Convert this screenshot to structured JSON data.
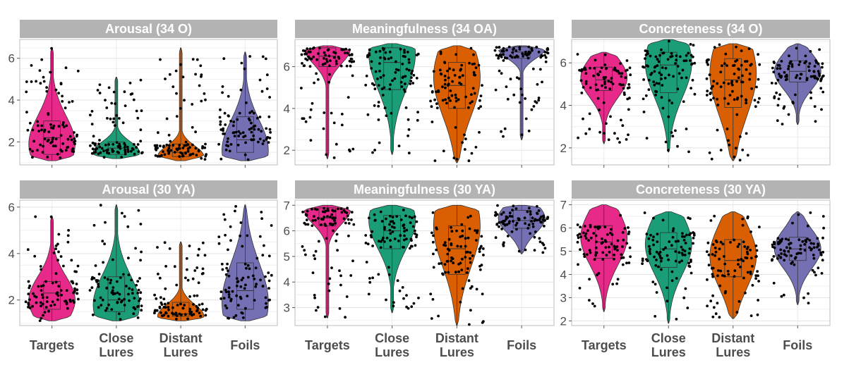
{
  "chart_data": [
    {
      "type": "violin",
      "title": "Arousal (34 O)",
      "ylim": [
        0.9,
        6.9
      ],
      "yticks": [
        2,
        4,
        6
      ],
      "categories": [
        "Targets",
        "Close Lures",
        "Distant Lures",
        "Foils"
      ],
      "colors": [
        "#e7298a",
        "#1b9e77",
        "#d95f02",
        "#7570b3"
      ],
      "series": [
        {
          "min": 1.1,
          "q1": 1.4,
          "median": 2.2,
          "q3": 3.0,
          "max": 6.5,
          "peak": 1.9
        },
        {
          "min": 1.2,
          "q1": 1.4,
          "median": 1.7,
          "q3": 2.0,
          "max": 5.1,
          "peak": 1.5
        },
        {
          "min": 1.1,
          "q1": 1.3,
          "median": 1.5,
          "q3": 1.9,
          "max": 6.5,
          "peak": 1.3
        },
        {
          "min": 1.1,
          "q1": 1.5,
          "median": 2.1,
          "q3": 3.2,
          "max": 6.3,
          "peak": 1.6
        }
      ]
    },
    {
      "type": "violin",
      "title": "Meaningfulness (34 OA)",
      "ylim": [
        1.3,
        7.3
      ],
      "yticks": [
        2,
        4,
        6
      ],
      "categories": [
        "Targets",
        "Close Lures",
        "Distant Lures",
        "Foils"
      ],
      "colors": [
        "#e7298a",
        "#1b9e77",
        "#d95f02",
        "#7570b3"
      ],
      "series": [
        {
          "min": 1.6,
          "q1": 6.0,
          "median": 6.5,
          "q3": 6.9,
          "max": 7.0,
          "peak": 6.9
        },
        {
          "min": 1.8,
          "q1": 4.9,
          "median": 6.2,
          "q3": 6.9,
          "max": 7.1,
          "peak": 6.6
        },
        {
          "min": 1.4,
          "q1": 4.0,
          "median": 5.1,
          "q3": 6.2,
          "max": 7.0,
          "peak": 5.5
        },
        {
          "min": 2.5,
          "q1": 6.4,
          "median": 6.7,
          "q3": 6.95,
          "max": 7.0,
          "peak": 6.85
        }
      ]
    },
    {
      "type": "violin",
      "title": "Concreteness (34 O)",
      "ylim": [
        1.2,
        7.1
      ],
      "yticks": [
        2,
        4,
        6
      ],
      "categories": [
        "Targets",
        "Close Lures",
        "Distant Lures",
        "Foils"
      ],
      "colors": [
        "#e7298a",
        "#1b9e77",
        "#d95f02",
        "#7570b3"
      ],
      "series": [
        {
          "min": 2.2,
          "q1": 4.7,
          "median": 5.2,
          "q3": 5.8,
          "max": 6.5,
          "peak": 5.3
        },
        {
          "min": 1.8,
          "q1": 4.6,
          "median": 5.9,
          "q3": 6.5,
          "max": 7.1,
          "peak": 6.0
        },
        {
          "min": 1.4,
          "q1": 3.9,
          "median": 5.2,
          "q3": 6.2,
          "max": 6.9,
          "peak": 5.5
        },
        {
          "min": 3.1,
          "q1": 5.1,
          "median": 5.6,
          "q3": 6.1,
          "max": 6.9,
          "peak": 5.6
        }
      ]
    },
    {
      "type": "violin",
      "title": "Arousal (30 YA)",
      "ylim": [
        0.9,
        6.3
      ],
      "yticks": [
        2,
        4,
        6
      ],
      "categories": [
        "Targets",
        "Close Lures",
        "Distant Lures",
        "Foils"
      ],
      "colors": [
        "#e7298a",
        "#1b9e77",
        "#d95f02",
        "#7570b3"
      ],
      "series": [
        {
          "min": 1.1,
          "q1": 1.6,
          "median": 2.3,
          "q3": 2.8,
          "max": 5.6,
          "peak": 2.0
        },
        {
          "min": 1.1,
          "q1": 1.5,
          "median": 2.0,
          "q3": 3.0,
          "max": 6.1,
          "peak": 1.8
        },
        {
          "min": 1.1,
          "q1": 1.3,
          "median": 1.4,
          "q3": 1.9,
          "max": 4.5,
          "peak": 1.3
        },
        {
          "min": 1.1,
          "q1": 1.6,
          "median": 2.4,
          "q3": 3.6,
          "max": 6.1,
          "peak": 1.9
        }
      ]
    },
    {
      "type": "violin",
      "title": "Meaningfulness (30 YA)",
      "ylim": [
        2.3,
        7.2
      ],
      "yticks": [
        3,
        4,
        5,
        6,
        7
      ],
      "categories": [
        "Targets",
        "Close Lures",
        "Distant Lures",
        "Foils"
      ],
      "colors": [
        "#e7298a",
        "#1b9e77",
        "#d95f02",
        "#7570b3"
      ],
      "series": [
        {
          "min": 2.6,
          "q1": 6.2,
          "median": 6.5,
          "q3": 6.9,
          "max": 7.0,
          "peak": 6.85
        },
        {
          "min": 2.8,
          "q1": 5.3,
          "median": 6.0,
          "q3": 6.6,
          "max": 7.0,
          "peak": 6.4
        },
        {
          "min": 2.3,
          "q1": 4.3,
          "median": 5.3,
          "q3": 6.2,
          "max": 7.0,
          "peak": 6.2
        },
        {
          "min": 5.1,
          "q1": 6.1,
          "median": 6.4,
          "q3": 6.8,
          "max": 7.0,
          "peak": 6.5
        }
      ]
    },
    {
      "type": "violin",
      "title": "Concreteness (30 YA)",
      "ylim": [
        1.8,
        7.2
      ],
      "yticks": [
        2,
        3,
        4,
        5,
        6,
        7
      ],
      "categories": [
        "Targets",
        "Close Lures",
        "Distant Lures",
        "Foils"
      ],
      "colors": [
        "#e7298a",
        "#1b9e77",
        "#d95f02",
        "#7570b3"
      ],
      "series": [
        {
          "min": 2.4,
          "q1": 4.7,
          "median": 5.4,
          "q3": 6.1,
          "max": 7.0,
          "peak": 5.6
        },
        {
          "min": 1.9,
          "q1": 4.3,
          "median": 5.1,
          "q3": 5.8,
          "max": 6.7,
          "peak": 5.3
        },
        {
          "min": 2.1,
          "q1": 3.9,
          "median": 4.6,
          "q3": 5.5,
          "max": 6.7,
          "peak": 4.8
        },
        {
          "min": 2.7,
          "q1": 4.6,
          "median": 5.1,
          "q3": 5.6,
          "max": 6.7,
          "peak": 5.1
        }
      ]
    }
  ]
}
